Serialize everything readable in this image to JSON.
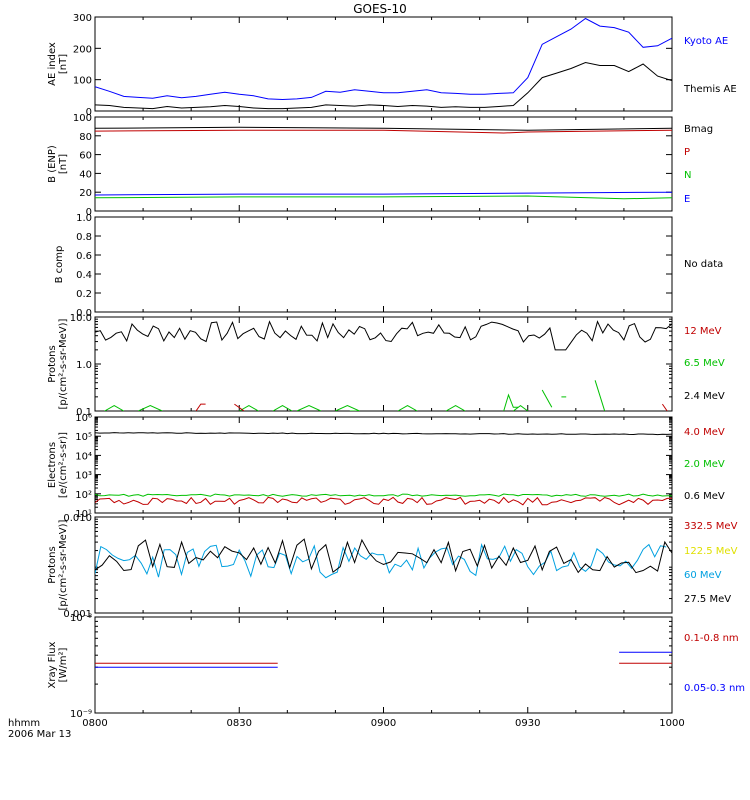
{
  "chart_data": {
    "type": "line",
    "title": "GOES-10",
    "x_axis": {
      "range": [
        "0800",
        "1000"
      ],
      "ticks": [
        "0800",
        "0830",
        "0900",
        "0930",
        "1000"
      ],
      "label": "hhmm",
      "date": "2006 Mar 13"
    },
    "panels": [
      {
        "id": "ae",
        "ylabel": [
          "AE index",
          "[nT]"
        ],
        "scale": "linear",
        "ylim": [
          0,
          310
        ],
        "ticks": [
          "0",
          "100",
          "200",
          "300"
        ],
        "series": [
          {
            "name": "Kyoto AE",
            "color": "#0000ff",
            "x": [
              0,
              3,
              6,
              9,
              12,
              15,
              18,
              21,
              24,
              27,
              30,
              33,
              36,
              39,
              42,
              45,
              48,
              51,
              54,
              57,
              60,
              63,
              66,
              69,
              72,
              75,
              78,
              81,
              84,
              87,
              90,
              93,
              96,
              99,
              102,
              105,
              108,
              111,
              114,
              117,
              120
            ],
            "y": [
              80,
              65,
              48,
              45,
              42,
              50,
              44,
              48,
              55,
              62,
              55,
              50,
              40,
              38,
              40,
              45,
              65,
              62,
              70,
              65,
              60,
              60,
              65,
              70,
              60,
              58,
              55,
              55,
              58,
              60,
              110,
              220,
              245,
              270,
              305,
              280,
              275,
              260,
              210,
              215,
              240
            ]
          },
          {
            "name": "Themis AE",
            "color": "#000000",
            "x": [
              0,
              3,
              6,
              9,
              12,
              15,
              18,
              21,
              24,
              27,
              30,
              33,
              36,
              39,
              42,
              45,
              48,
              51,
              54,
              57,
              60,
              63,
              66,
              69,
              72,
              75,
              78,
              81,
              84,
              87,
              90,
              93,
              96,
              99,
              102,
              105,
              108,
              111,
              114,
              117,
              120
            ],
            "y": [
              20,
              18,
              12,
              10,
              8,
              15,
              10,
              12,
              14,
              18,
              15,
              10,
              8,
              8,
              10,
              12,
              20,
              18,
              16,
              20,
              18,
              15,
              18,
              16,
              12,
              14,
              12,
              12,
              15,
              18,
              60,
              110,
              125,
              140,
              160,
              150,
              150,
              130,
              155,
              115,
              100
            ]
          }
        ]
      },
      {
        "id": "bfield",
        "ylabel": [
          "B (ENP)",
          "[nT]"
        ],
        "scale": "linear",
        "ylim": [
          0,
          100
        ],
        "ticks": [
          "0",
          "20",
          "40",
          "60",
          "80",
          "100"
        ],
        "series": [
          {
            "name": "Bmag",
            "color": "#000000",
            "x": [
              0,
              30,
              60,
              90,
              120
            ],
            "y": [
              88,
              89,
              88,
              86,
              88
            ]
          },
          {
            "name": "P",
            "color": "#c00000",
            "x": [
              0,
              30,
              60,
              85,
              90,
              120
            ],
            "y": [
              85,
              86,
              86,
              83,
              84,
              86
            ]
          },
          {
            "name": "N",
            "color": "#00c000",
            "x": [
              0,
              30,
              60,
              90,
              110,
              120
            ],
            "y": [
              14,
              15,
              15,
              16,
              13,
              14
            ]
          },
          {
            "name": "E",
            "color": "#0000ff",
            "x": [
              0,
              30,
              60,
              90,
              120
            ],
            "y": [
              17,
              18,
              18,
              19,
              20
            ]
          }
        ]
      },
      {
        "id": "bcomp",
        "ylabel": [
          "B comp"
        ],
        "scale": "linear",
        "ylim": [
          0,
          1
        ],
        "ticks": [
          "0.0",
          "0.2",
          "0.4",
          "0.6",
          "0.8",
          "1.0"
        ],
        "series": [],
        "labels": [
          {
            "text": "No data",
            "color": "#000000"
          }
        ]
      },
      {
        "id": "protons_low",
        "ylabel": [
          "Protons",
          "[p/(cm²-s-sr-MeV)]"
        ],
        "scale": "log",
        "ylim": [
          0.1,
          10
        ],
        "ticks": [
          "0.1",
          "1.0",
          "10.0"
        ],
        "series": [
          {
            "name": "12 MeV",
            "color": "#c00000"
          },
          {
            "name": "6.5 MeV",
            "color": "#00c000"
          },
          {
            "name": "2.4 MeV",
            "color": "#000000"
          }
        ]
      },
      {
        "id": "electrons",
        "ylabel": [
          "Electrons",
          "[e/(cm²-s-sr)]"
        ],
        "scale": "log",
        "ylim": [
          10,
          1000000
        ],
        "ticks": [
          "10¹",
          "10²",
          "10³",
          "10⁴",
          "10⁵",
          "10⁶"
        ],
        "series": [
          {
            "name": "4.0 MeV",
            "color": "#c00000"
          },
          {
            "name": "2.0 MeV",
            "color": "#00c000"
          },
          {
            "name": "0.6 MeV",
            "color": "#000000"
          }
        ]
      },
      {
        "id": "protons_high",
        "ylabel": [
          "Protons",
          "[p/(cm²-s-sr-MeV)]"
        ],
        "scale": "log",
        "ylim": [
          0.001,
          0.1
        ],
        "ticks": [
          "0.001",
          "0.010"
        ],
        "series": [
          {
            "name": "332.5 MeV",
            "color": "#c00000"
          },
          {
            "name": "122.5 MeV",
            "color": "#e0e000"
          },
          {
            "name": "60 MeV",
            "color": "#00a0e0"
          },
          {
            "name": "27.5 MeV",
            "color": "#000000"
          }
        ]
      },
      {
        "id": "xray",
        "ylabel": [
          "Xray Flux",
          "[W/m²]"
        ],
        "scale": "log",
        "ylim": [
          1e-09,
          1e-08
        ],
        "ticks": [
          "10⁻⁹",
          "10⁻⁸"
        ],
        "series": [
          {
            "name": "0.1-0.8 nm",
            "color": "#c00000",
            "segments": [
              [
                [
                  0,
                  3.3e-09
                ],
                [
                  38,
                  3.3e-09
                ]
              ],
              [
                [
                  109,
                  3.3e-09
                ],
                [
                  120,
                  3.3e-09
                ]
              ]
            ]
          },
          {
            "name": "0.05-0.3 nm",
            "color": "#0000ff",
            "segments": [
              [
                [
                  0,
                  3e-09
                ],
                [
                  38,
                  3e-09
                ]
              ],
              [
                [
                  109,
                  4.3e-09
                ],
                [
                  120,
                  4.3e-09
                ]
              ]
            ]
          }
        ]
      }
    ]
  }
}
